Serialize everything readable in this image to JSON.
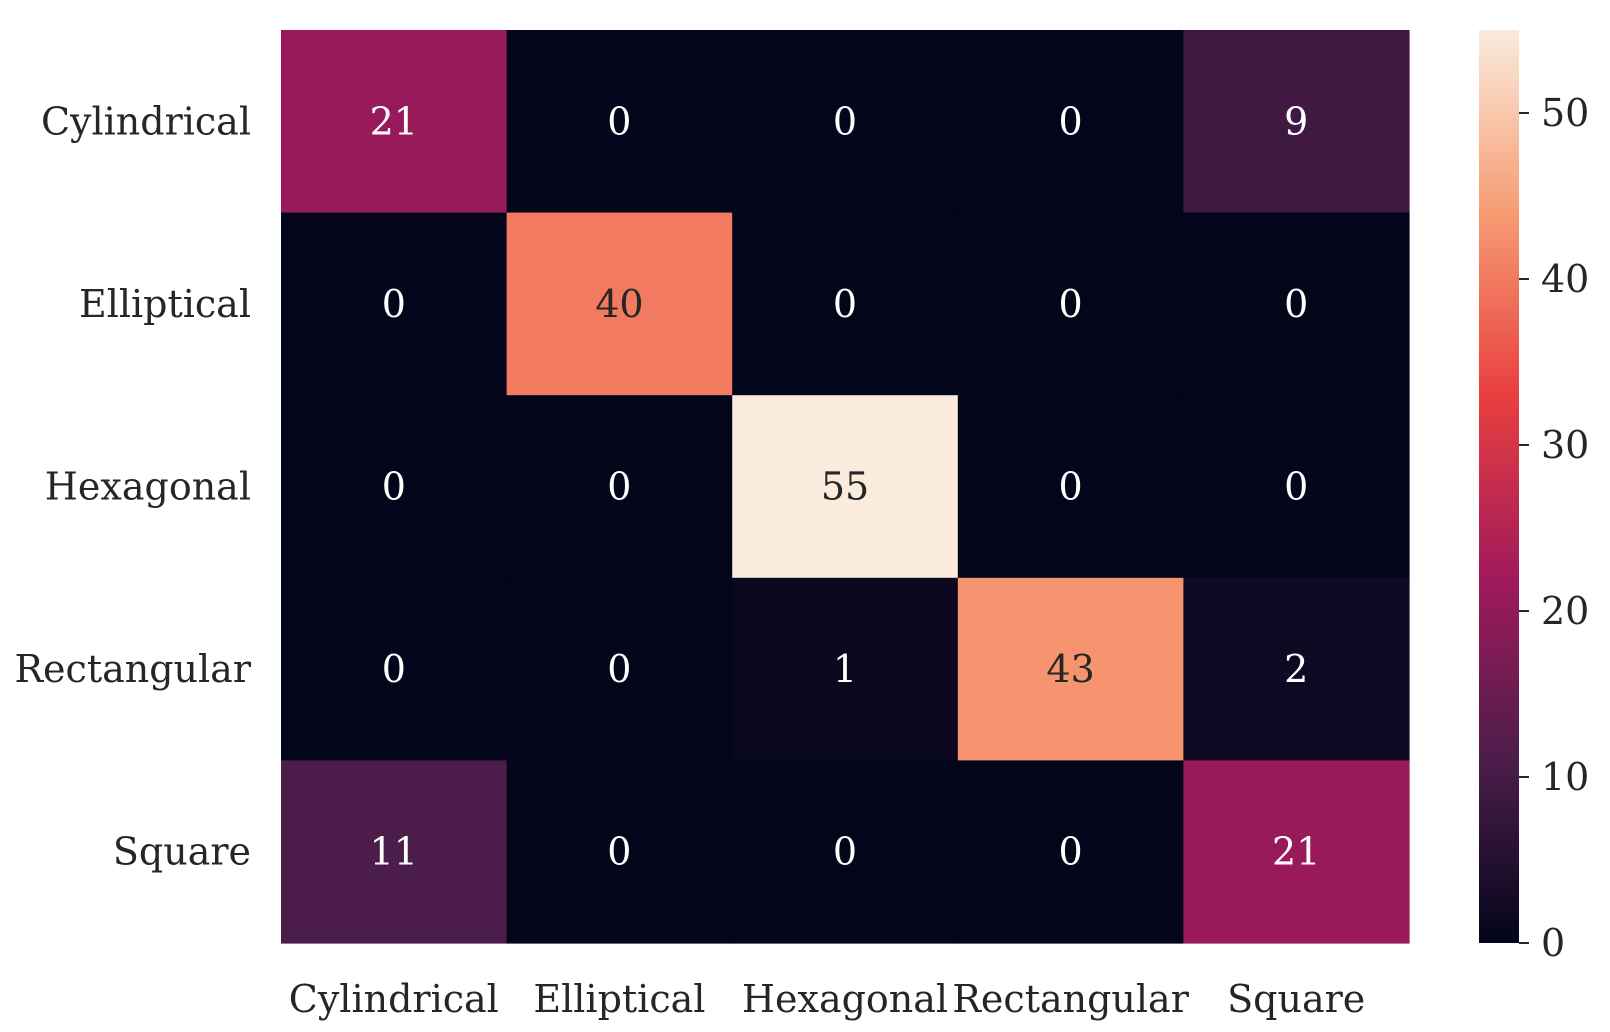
{
  "chart_data": {
    "type": "heatmap",
    "title": "",
    "xlabel": "",
    "ylabel": "",
    "x_categories": [
      "Cylindrical",
      "Elliptical",
      "Hexagonal",
      "Rectangular",
      "Square"
    ],
    "y_categories": [
      "Cylindrical",
      "Elliptical",
      "Hexagonal",
      "Rectangular",
      "Square"
    ],
    "values": [
      [
        21,
        0,
        0,
        0,
        9
      ],
      [
        0,
        40,
        0,
        0,
        0
      ],
      [
        0,
        0,
        55,
        0,
        0
      ],
      [
        0,
        0,
        1,
        43,
        2
      ],
      [
        11,
        0,
        0,
        0,
        21
      ]
    ],
    "annotations": true,
    "colormap": "rocket",
    "colorbar": {
      "range": [
        0,
        55
      ],
      "ticks": [
        0,
        10,
        20,
        30,
        40,
        50
      ],
      "tick_labels": [
        "0",
        "10",
        "20",
        "30",
        "40",
        "50"
      ],
      "placement": "right"
    },
    "grid": false,
    "colors": {
      "cmap_stops": [
        "#03051a",
        "#4c1d4b",
        "#a11a5b",
        "#e83f3f",
        "#f69c73",
        "#faebdd"
      ],
      "annotation_light": "#ffffff",
      "annotation_dark": "#262626",
      "tick_color": "#262626"
    }
  }
}
